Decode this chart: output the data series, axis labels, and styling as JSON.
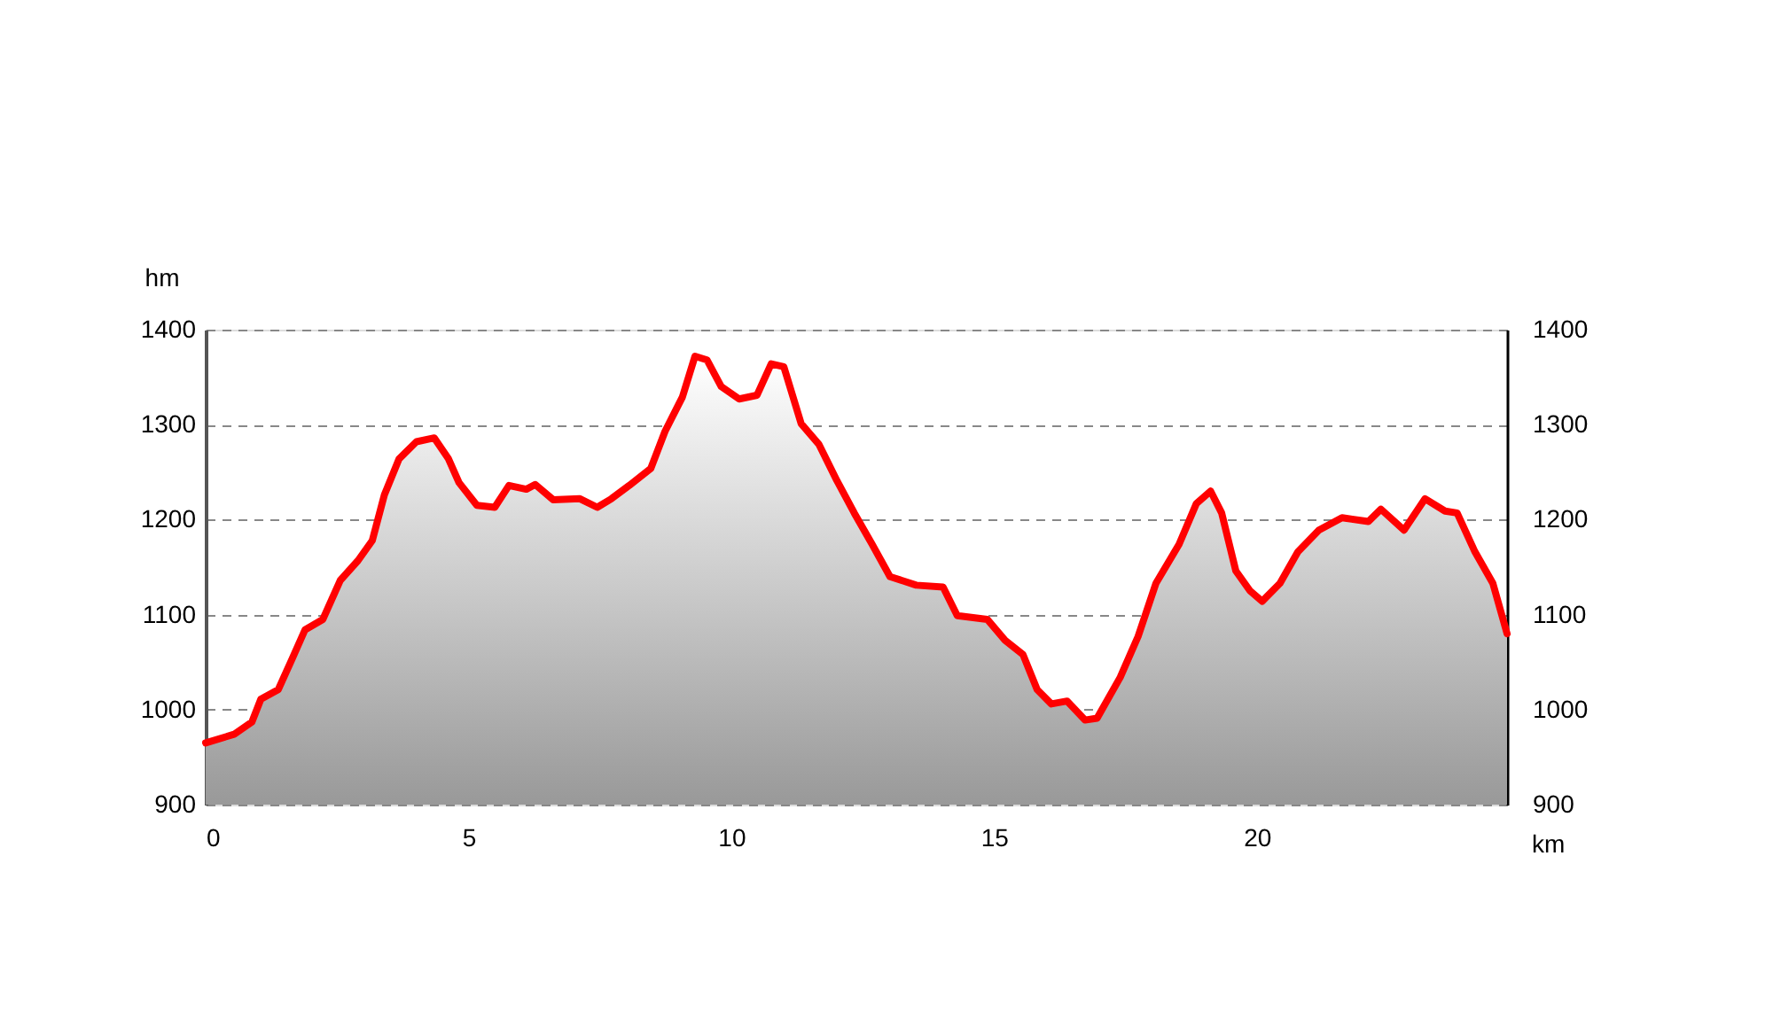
{
  "chart_data": {
    "type": "area",
    "xlabel": "km",
    "ylabel": "hm",
    "xlim": [
      0,
      24.76
    ],
    "xticks": [
      0,
      5,
      10,
      15,
      20
    ],
    "ylim": [
      900,
      1400
    ],
    "yticks": [
      900,
      1000,
      1100,
      1200,
      1300,
      1400
    ],
    "y2lim": [
      900,
      1400
    ],
    "y2ticks": [
      900,
      1000,
      1100,
      1200,
      1300,
      1400
    ],
    "grid": "y",
    "x": [
      0,
      0.54,
      0.88,
      1.05,
      1.38,
      1.65,
      1.89,
      2.23,
      2.56,
      2.9,
      3.17,
      3.4,
      3.68,
      4.01,
      4.35,
      4.62,
      4.82,
      5.16,
      5.5,
      5.77,
      6.1,
      6.27,
      6.61,
      7.12,
      7.45,
      7.72,
      8.06,
      8.47,
      8.74,
      9.07,
      9.31,
      9.54,
      9.81,
      10.15,
      10.49,
      10.76,
      11.0,
      11.33,
      11.67,
      12.01,
      12.34,
      12.68,
      13.02,
      13.52,
      14.03,
      14.3,
      14.87,
      15.21,
      15.55,
      15.82,
      16.09,
      16.39,
      16.73,
      16.96,
      17.4,
      17.74,
      18.08,
      18.52,
      18.85,
      19.12,
      19.33,
      19.6,
      19.87,
      20.1,
      20.44,
      20.78,
      21.18,
      21.62,
      22.12,
      22.36,
      22.8,
      23.2,
      23.58,
      23.81,
      24.15,
      24.49,
      24.76
    ],
    "series": [
      {
        "color": "#ff0000",
        "values": [
          965,
          974,
          987,
          1011,
          1021,
          1054,
          1084,
          1095,
          1136,
          1157,
          1178,
          1226,
          1264,
          1282,
          1286,
          1264,
          1239,
          1215,
          1213,
          1236,
          1232,
          1237,
          1221,
          1222,
          1213,
          1222,
          1236,
          1254,
          1293,
          1329,
          1372,
          1368,
          1340,
          1327,
          1331,
          1364,
          1361,
          1301,
          1279,
          1241,
          1207,
          1174,
          1140,
          1131,
          1129,
          1099,
          1095,
          1073,
          1058,
          1021,
          1006,
          1009,
          989,
          991,
          1034,
          1077,
          1133,
          1174,
          1217,
          1230,
          1207,
          1146,
          1125,
          1114,
          1133,
          1166,
          1189,
          1202,
          1198,
          1211,
          1189,
          1222,
          1209,
          1207,
          1166,
          1133,
          1080
        ]
      }
    ]
  }
}
